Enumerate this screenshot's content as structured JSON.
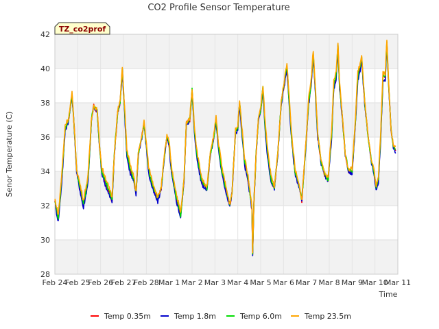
{
  "chart_data": {
    "type": "line",
    "title": "CO2 Profile Sensor Temperature",
    "xlabel": "Time",
    "ylabel": "Senor Temperature (C)",
    "ylim": [
      28,
      42
    ],
    "yticks": [
      28,
      30,
      32,
      34,
      36,
      38,
      40,
      42
    ],
    "x_tick_labels": [
      "Feb 24",
      "Feb 25",
      "Feb 26",
      "Feb 27",
      "Feb 28",
      "Mar 1",
      "Mar 2",
      "Mar 3",
      "Mar 4",
      "Mar 5",
      "Mar 6",
      "Mar 7",
      "Mar 8",
      "Mar 9",
      "Mar 10",
      "Mar 11"
    ],
    "xlim_days": [
      0,
      15
    ],
    "tag_label": "TZ_co2prof",
    "grid": true,
    "background_bands": true,
    "legend_position": "bottom",
    "series": [
      {
        "name": "Temp 0.35m",
        "color": "#ff0000",
        "dy": 0.0
      },
      {
        "name": "Temp 1.8m",
        "color": "#0000cc",
        "dy": -0.15
      },
      {
        "name": "Temp 6.0m",
        "color": "#00dd00",
        "dy": 0.1
      },
      {
        "name": "Temp 23.5m",
        "color": "#ffa500",
        "dy": 0.3
      }
    ],
    "profile": [
      [
        0.0,
        32.2
      ],
      [
        0.15,
        31.2
      ],
      [
        0.3,
        33.5
      ],
      [
        0.45,
        36.5
      ],
      [
        0.6,
        37.0
      ],
      [
        0.75,
        38.5
      ],
      [
        0.85,
        36.5
      ],
      [
        0.95,
        34.0
      ],
      [
        1.1,
        33.0
      ],
      [
        1.25,
        32.0
      ],
      [
        1.45,
        33.5
      ],
      [
        1.6,
        37.0
      ],
      [
        1.7,
        37.8
      ],
      [
        1.85,
        37.5
      ],
      [
        1.95,
        35.5
      ],
      [
        2.05,
        34.0
      ],
      [
        2.3,
        33.0
      ],
      [
        2.5,
        32.3
      ],
      [
        2.6,
        35.0
      ],
      [
        2.75,
        37.5
      ],
      [
        2.85,
        38.0
      ],
      [
        2.95,
        39.9
      ],
      [
        3.05,
        37.5
      ],
      [
        3.15,
        35.0
      ],
      [
        3.3,
        34.0
      ],
      [
        3.45,
        33.5
      ],
      [
        3.55,
        32.7
      ],
      [
        3.65,
        35.0
      ],
      [
        3.8,
        36.0
      ],
      [
        3.9,
        36.8
      ],
      [
        4.0,
        35.5
      ],
      [
        4.1,
        34.0
      ],
      [
        4.3,
        33.0
      ],
      [
        4.5,
        32.3
      ],
      [
        4.65,
        33.0
      ],
      [
        4.8,
        35.0
      ],
      [
        4.9,
        36.0
      ],
      [
        5.0,
        35.5
      ],
      [
        5.1,
        34.0
      ],
      [
        5.3,
        32.5
      ],
      [
        5.5,
        31.4
      ],
      [
        5.65,
        33.5
      ],
      [
        5.75,
        36.8
      ],
      [
        5.9,
        37.0
      ],
      [
        6.0,
        38.7
      ],
      [
        6.1,
        36.5
      ],
      [
        6.2,
        35.0
      ],
      [
        6.4,
        33.5
      ],
      [
        6.5,
        33.2
      ],
      [
        6.65,
        33.0
      ],
      [
        6.8,
        35.0
      ],
      [
        6.95,
        36.0
      ],
      [
        7.05,
        37.0
      ],
      [
        7.15,
        35.5
      ],
      [
        7.3,
        34.0
      ],
      [
        7.5,
        32.8
      ],
      [
        7.65,
        32.0
      ],
      [
        7.75,
        32.8
      ],
      [
        7.9,
        36.3
      ],
      [
        8.0,
        36.5
      ],
      [
        8.08,
        38.0
      ],
      [
        8.2,
        36.0
      ],
      [
        8.3,
        34.5
      ],
      [
        8.45,
        33.5
      ],
      [
        8.55,
        32.5
      ],
      [
        8.62,
        31.8
      ],
      [
        8.65,
        29.2
      ],
      [
        8.7,
        32.0
      ],
      [
        8.8,
        35.0
      ],
      [
        8.9,
        37.0
      ],
      [
        9.0,
        37.5
      ],
      [
        9.1,
        38.8
      ],
      [
        9.2,
        36.5
      ],
      [
        9.3,
        35.0
      ],
      [
        9.45,
        33.5
      ],
      [
        9.6,
        33.0
      ],
      [
        9.75,
        35.0
      ],
      [
        9.9,
        38.0
      ],
      [
        10.0,
        38.8
      ],
      [
        10.15,
        40.1
      ],
      [
        10.25,
        38.0
      ],
      [
        10.35,
        36.0
      ],
      [
        10.5,
        34.0
      ],
      [
        10.7,
        33.0
      ],
      [
        10.8,
        32.3
      ],
      [
        10.95,
        35.0
      ],
      [
        11.1,
        38.0
      ],
      [
        11.2,
        39.0
      ],
      [
        11.3,
        40.8
      ],
      [
        11.4,
        38.5
      ],
      [
        11.5,
        36.0
      ],
      [
        11.65,
        34.5
      ],
      [
        11.8,
        33.8
      ],
      [
        11.95,
        33.5
      ],
      [
        12.1,
        36.0
      ],
      [
        12.2,
        39.0
      ],
      [
        12.3,
        39.5
      ],
      [
        12.38,
        41.3
      ],
      [
        12.45,
        39.0
      ],
      [
        12.55,
        37.5
      ],
      [
        12.7,
        35.0
      ],
      [
        12.85,
        34.0
      ],
      [
        13.0,
        34.0
      ],
      [
        13.15,
        37.0
      ],
      [
        13.25,
        39.5
      ],
      [
        13.35,
        40.0
      ],
      [
        13.42,
        40.6
      ],
      [
        13.55,
        38.0
      ],
      [
        13.7,
        36.0
      ],
      [
        13.85,
        34.5
      ],
      [
        13.95,
        34.0
      ],
      [
        14.05,
        33.0
      ],
      [
        14.15,
        33.5
      ],
      [
        14.25,
        36.0
      ],
      [
        14.35,
        39.5
      ],
      [
        14.45,
        39.5
      ],
      [
        14.52,
        41.5
      ],
      [
        14.6,
        39.0
      ],
      [
        14.7,
        36.5
      ],
      [
        14.8,
        35.5
      ],
      [
        14.9,
        35.2
      ]
    ]
  }
}
